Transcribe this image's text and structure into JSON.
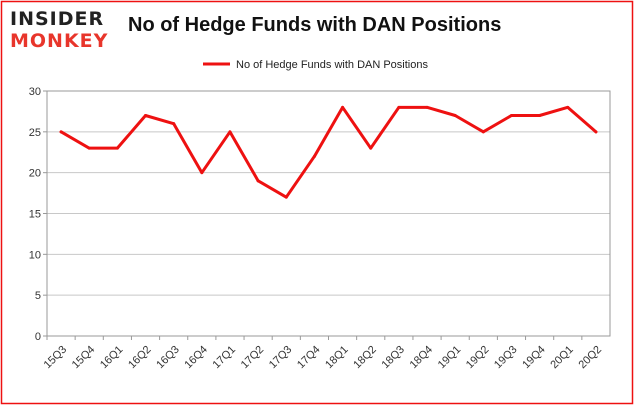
{
  "logo": {
    "line1": "INSIDER",
    "line2": "MONKEY"
  },
  "chart_data": {
    "type": "line",
    "title": "No of Hedge Funds with DAN Positions",
    "xlabel": "",
    "ylabel": "",
    "categories": [
      "15Q3",
      "15Q4",
      "16Q1",
      "16Q2",
      "16Q3",
      "16Q4",
      "17Q1",
      "17Q2",
      "17Q3",
      "17Q4",
      "18Q1",
      "18Q2",
      "18Q3",
      "18Q4",
      "19Q1",
      "19Q2",
      "19Q3",
      "19Q4",
      "20Q1",
      "20Q2"
    ],
    "series": [
      {
        "name": "No of Hedge Funds with DAN Positions",
        "values": [
          25,
          23,
          23,
          27,
          26,
          20,
          25,
          19,
          17,
          22,
          28,
          23,
          28,
          28,
          27,
          25,
          27,
          27,
          28,
          25
        ],
        "color": "#ee1111"
      }
    ],
    "ylim": [
      0,
      30
    ],
    "yticks": [
      0,
      5,
      10,
      15,
      20,
      25,
      30
    ],
    "grid": "horizontal",
    "legend": "top-center",
    "frame_color": "#ee1111"
  }
}
